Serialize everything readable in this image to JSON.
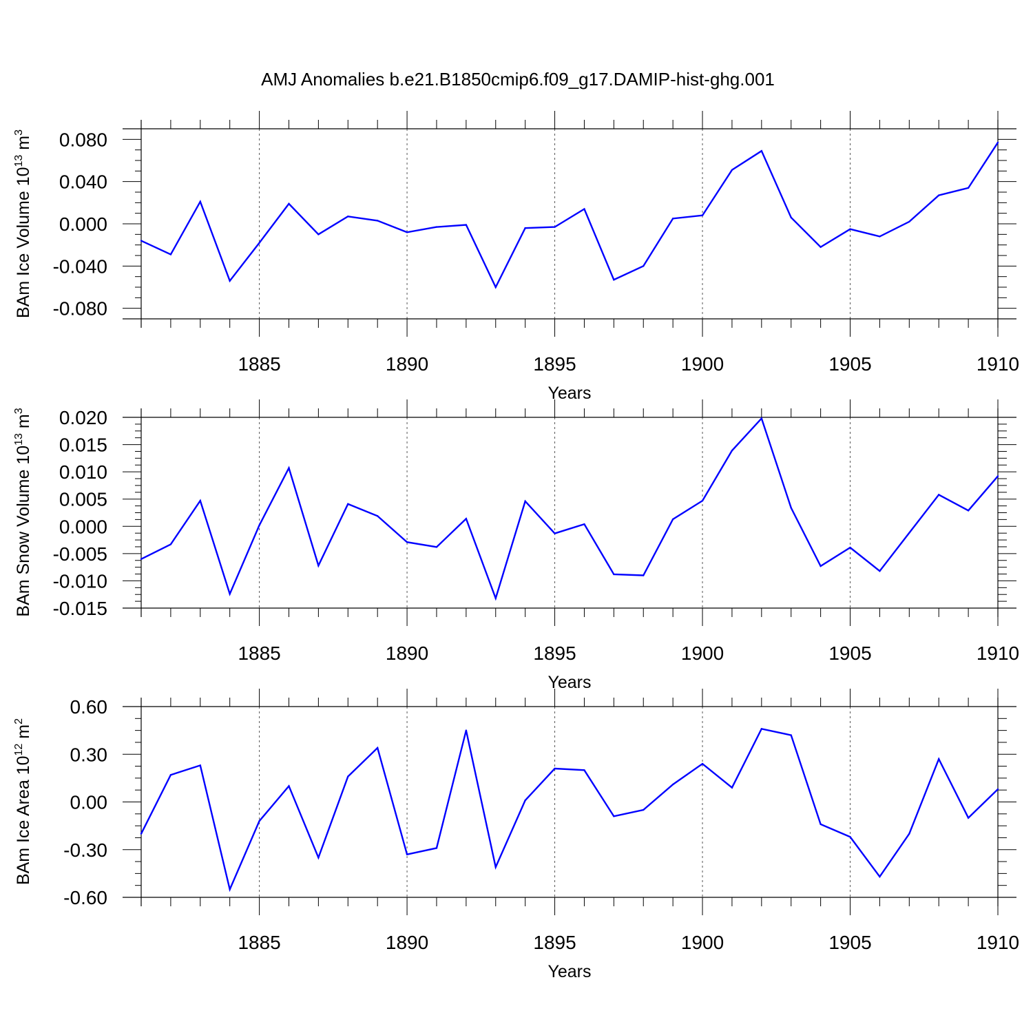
{
  "title": "AMJ Anomalies b.e21.B1850cmip6.f09_g17.DAMIP-hist-ghg.001",
  "colors": {
    "line": "#0000ff",
    "axis": "#000000",
    "grid": "#555555"
  },
  "chart_data": [
    {
      "type": "line",
      "ylabel": "BAm Ice Volume 10",
      "ylabel_exp": "13",
      "ylabel_unit": " m",
      "ylabel_unit_exp": "3",
      "xlabel": "Years",
      "xlim": [
        1881,
        1910
      ],
      "ylim": [
        -0.09,
        0.09
      ],
      "xticks": [
        "1885",
        "1890",
        "1895",
        "1900",
        "1905",
        "1910"
      ],
      "yticks": [
        "-0.080",
        "-0.040",
        "0.000",
        "0.040",
        "0.080"
      ],
      "x": [
        1881,
        1882,
        1883,
        1884,
        1885,
        1886,
        1887,
        1888,
        1889,
        1890,
        1891,
        1892,
        1893,
        1894,
        1895,
        1896,
        1897,
        1898,
        1899,
        1900,
        1901,
        1902,
        1903,
        1904,
        1905,
        1906,
        1907,
        1908,
        1909,
        1910
      ],
      "values": [
        -0.016,
        -0.029,
        0.021,
        -0.054,
        -0.018,
        0.019,
        -0.01,
        0.007,
        0.003,
        -0.008,
        -0.003,
        -0.001,
        -0.06,
        -0.004,
        -0.003,
        0.014,
        -0.053,
        -0.04,
        0.005,
        0.008,
        0.051,
        0.069,
        0.006,
        -0.022,
        -0.005,
        -0.012,
        0.002,
        0.027,
        0.034,
        0.077
      ]
    },
    {
      "type": "line",
      "ylabel": "BAm Snow Volume 10",
      "ylabel_exp": "13",
      "ylabel_unit": " m",
      "ylabel_unit_exp": "3",
      "xlabel": "Years",
      "xlim": [
        1881,
        1910
      ],
      "ylim": [
        -0.015,
        0.02
      ],
      "xticks": [
        "1885",
        "1890",
        "1895",
        "1900",
        "1905",
        "1910"
      ],
      "yticks": [
        "-0.015",
        "-0.010",
        "-0.005",
        "0.000",
        "0.005",
        "0.010",
        "0.015",
        "0.020"
      ],
      "x": [
        1881,
        1882,
        1883,
        1884,
        1885,
        1886,
        1887,
        1888,
        1889,
        1890,
        1891,
        1892,
        1893,
        1894,
        1895,
        1896,
        1897,
        1898,
        1899,
        1900,
        1901,
        1902,
        1903,
        1904,
        1905,
        1906,
        1907,
        1908,
        1909,
        1910
      ],
      "values": [
        -0.006,
        -0.0033,
        0.0047,
        -0.0124,
        0.0002,
        0.0107,
        -0.0072,
        0.0041,
        0.0019,
        -0.0029,
        -0.0038,
        0.0014,
        -0.0132,
        0.0046,
        -0.0013,
        0.0004,
        -0.0088,
        -0.009,
        0.0013,
        0.0047,
        0.0139,
        0.0198,
        0.0034,
        -0.0073,
        -0.0039,
        -0.0082,
        -0.0012,
        0.0058,
        0.0029,
        0.0092
      ]
    },
    {
      "type": "line",
      "ylabel": "BAm Ice Area 10",
      "ylabel_exp": "12",
      "ylabel_unit": " m",
      "ylabel_unit_exp": "2",
      "xlabel": "Years",
      "xlim": [
        1881,
        1910
      ],
      "ylim": [
        -0.6,
        0.6
      ],
      "xticks": [
        "1885",
        "1890",
        "1895",
        "1900",
        "1905",
        "1910"
      ],
      "yticks": [
        "-0.60",
        "-0.30",
        "0.00",
        "0.30",
        "0.60"
      ],
      "x": [
        1881,
        1882,
        1883,
        1884,
        1885,
        1886,
        1887,
        1888,
        1889,
        1890,
        1891,
        1892,
        1893,
        1894,
        1895,
        1896,
        1897,
        1898,
        1899,
        1900,
        1901,
        1902,
        1903,
        1904,
        1905,
        1906,
        1907,
        1908,
        1909,
        1910
      ],
      "values": [
        -0.2,
        0.17,
        0.23,
        -0.55,
        -0.12,
        0.1,
        -0.35,
        0.16,
        0.34,
        -0.33,
        -0.29,
        0.45,
        -0.41,
        0.01,
        0.21,
        0.2,
        -0.09,
        -0.05,
        0.11,
        0.24,
        0.09,
        0.46,
        0.42,
        -0.14,
        -0.22,
        -0.47,
        -0.2,
        0.27,
        -0.1,
        0.08
      ]
    }
  ]
}
